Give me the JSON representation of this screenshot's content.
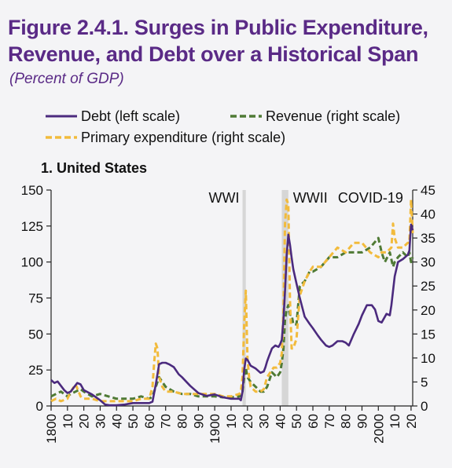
{
  "header": {
    "title": "Figure 2.4.1. Surges in Public Expenditure, Revenue, and Debt over a Historical Span",
    "subtitle": "(Percent of GDP)"
  },
  "chart_data": {
    "type": "line",
    "panel_title": "1. United States",
    "legend": [
      {
        "key": "debt",
        "label": "Debt (left scale)"
      },
      {
        "key": "revenue",
        "label": "Revenue (right scale)"
      },
      {
        "key": "expenditure",
        "label": "Primary expenditure (right scale)"
      }
    ],
    "x_range": [
      1800,
      2021
    ],
    "x_ticks": [
      {
        "value": 1800,
        "label": "1800"
      },
      {
        "value": 1810,
        "label": "10"
      },
      {
        "value": 1820,
        "label": "20"
      },
      {
        "value": 1830,
        "label": "30"
      },
      {
        "value": 1840,
        "label": "40"
      },
      {
        "value": 1850,
        "label": "50"
      },
      {
        "value": 1860,
        "label": "60"
      },
      {
        "value": 1870,
        "label": "70"
      },
      {
        "value": 1880,
        "label": "80"
      },
      {
        "value": 1890,
        "label": "90"
      },
      {
        "value": 1900,
        "label": "1900"
      },
      {
        "value": 1910,
        "label": "10"
      },
      {
        "value": 1920,
        "label": "20"
      },
      {
        "value": 1930,
        "label": "30"
      },
      {
        "value": 1940,
        "label": "40"
      },
      {
        "value": 1950,
        "label": "50"
      },
      {
        "value": 1960,
        "label": "60"
      },
      {
        "value": 1970,
        "label": "70"
      },
      {
        "value": 1980,
        "label": "80"
      },
      {
        "value": 1990,
        "label": "90"
      },
      {
        "value": 2000,
        "label": "2000"
      },
      {
        "value": 2010,
        "label": "10"
      },
      {
        "value": 2020,
        "label": "20"
      }
    ],
    "y_left": {
      "range": [
        0,
        150
      ],
      "ticks": [
        0,
        25,
        50,
        75,
        100,
        125,
        150
      ]
    },
    "y_right": {
      "range": [
        0,
        45
      ],
      "ticks": [
        0,
        5,
        10,
        15,
        20,
        25,
        30,
        35,
        40,
        45
      ]
    },
    "shaded_periods": [
      {
        "label": "WWI",
        "start": 1917,
        "end": 1919
      },
      {
        "label": "WWII",
        "start": 1941,
        "end": 1945
      }
    ],
    "annotations": [
      {
        "label": "COVID-19",
        "x": 2020
      }
    ],
    "colors": {
      "debt": "#4b2a7e",
      "revenue": "#4f7a35",
      "expenditure": "#f2bb3c",
      "shade": "#d6d6d6"
    },
    "series": [
      {
        "key": "debt",
        "axis": "left",
        "x": [
          1800,
          1802,
          1804,
          1806,
          1808,
          1810,
          1812,
          1814,
          1816,
          1818,
          1820,
          1825,
          1830,
          1833,
          1836,
          1840,
          1845,
          1850,
          1855,
          1860,
          1862,
          1864,
          1866,
          1868,
          1870,
          1872,
          1875,
          1878,
          1880,
          1885,
          1890,
          1895,
          1900,
          1905,
          1910,
          1915,
          1916,
          1917,
          1918,
          1919,
          1920,
          1922,
          1925,
          1928,
          1930,
          1931,
          1932,
          1933,
          1935,
          1937,
          1939,
          1940,
          1941,
          1942,
          1943,
          1944,
          1945,
          1946,
          1947,
          1948,
          1950,
          1952,
          1955,
          1958,
          1960,
          1963,
          1965,
          1968,
          1970,
          1972,
          1975,
          1978,
          1980,
          1982,
          1985,
          1988,
          1990,
          1993,
          1996,
          1998,
          2000,
          2002,
          2005,
          2007,
          2008,
          2009,
          2010,
          2012,
          2015,
          2017,
          2018,
          2019,
          2020,
          2021
        ],
        "y": [
          18,
          16,
          17,
          14,
          11,
          9,
          10,
          13,
          16,
          15,
          11,
          8,
          4,
          1,
          0.5,
          0.5,
          1,
          2,
          2,
          2,
          3,
          15,
          29,
          30,
          30,
          29,
          27,
          22,
          20,
          14,
          9,
          7,
          8,
          6,
          5,
          5,
          4,
          10,
          25,
          33,
          32,
          28,
          26,
          23,
          24,
          27,
          31,
          34,
          40,
          42,
          41,
          43,
          46,
          60,
          80,
          105,
          119,
          112,
          103,
          95,
          85,
          75,
          62,
          57,
          54,
          49,
          46,
          42,
          41,
          42,
          45,
          45,
          44,
          42,
          50,
          57,
          63,
          70,
          70,
          67,
          59,
          58,
          64,
          63,
          70,
          80,
          90,
          100,
          102,
          104,
          105,
          108,
          126,
          122
        ]
      },
      {
        "key": "revenue",
        "axis": "right",
        "x": [
          1800,
          1803,
          1806,
          1810,
          1812,
          1815,
          1818,
          1820,
          1825,
          1830,
          1835,
          1840,
          1845,
          1850,
          1855,
          1860,
          1862,
          1864,
          1866,
          1868,
          1870,
          1875,
          1880,
          1885,
          1890,
          1895,
          1900,
          1905,
          1910,
          1915,
          1916,
          1917,
          1918,
          1919,
          1920,
          1922,
          1925,
          1928,
          1930,
          1932,
          1935,
          1938,
          1940,
          1941,
          1942,
          1943,
          1944,
          1945,
          1946,
          1947,
          1948,
          1950,
          1952,
          1955,
          1958,
          1960,
          1965,
          1970,
          1975,
          1980,
          1985,
          1990,
          1995,
          2000,
          2002,
          2004,
          2007,
          2009,
          2010,
          2012,
          2015,
          2018,
          2019,
          2020,
          2021
        ],
        "y": [
          2,
          2.5,
          3,
          2,
          2.5,
          3,
          3.5,
          3,
          2,
          2.5,
          2,
          1.5,
          1.5,
          1.5,
          2,
          1.5,
          2,
          4,
          6,
          5,
          4,
          3,
          2.5,
          2.5,
          2,
          2,
          2,
          1.8,
          1.8,
          2,
          2,
          3,
          6,
          8,
          6,
          5,
          4,
          3,
          3,
          4,
          7,
          6,
          7,
          9,
          12,
          18,
          20,
          21,
          19,
          19,
          17,
          17,
          25,
          26,
          28,
          28,
          29,
          31,
          31,
          32,
          32,
          32,
          33,
          35,
          32,
          30,
          32,
          29,
          30,
          31,
          32,
          31,
          32,
          30,
          31
        ]
      },
      {
        "key": "expenditure",
        "axis": "right",
        "x": [
          1800,
          1803,
          1806,
          1810,
          1812,
          1815,
          1818,
          1820,
          1825,
          1830,
          1835,
          1840,
          1845,
          1850,
          1855,
          1860,
          1862,
          1863,
          1864,
          1865,
          1866,
          1868,
          1870,
          1875,
          1880,
          1885,
          1890,
          1895,
          1900,
          1905,
          1910,
          1915,
          1916,
          1917,
          1918,
          1919,
          1920,
          1921,
          1922,
          1925,
          1928,
          1930,
          1932,
          1934,
          1936,
          1938,
          1940,
          1941,
          1942,
          1943,
          1944,
          1945,
          1946,
          1947,
          1948,
          1950,
          1952,
          1955,
          1958,
          1960,
          1965,
          1970,
          1975,
          1980,
          1985,
          1990,
          1995,
          2000,
          2002,
          2005,
          2008,
          2009,
          2010,
          2012,
          2015,
          2018,
          2019,
          2020,
          2021
        ],
        "y": [
          1,
          1.5,
          1,
          1.5,
          3,
          4.5,
          2,
          1.5,
          1.5,
          1,
          1,
          1,
          1,
          1,
          1.5,
          1.5,
          4,
          9,
          13,
          12,
          6,
          4,
          3,
          3,
          2.5,
          2.5,
          2.5,
          2.5,
          2.5,
          2,
          2,
          2.5,
          3,
          6,
          17,
          24,
          10,
          6,
          4,
          3,
          3,
          3.5,
          6,
          7,
          8,
          8,
          9,
          11,
          20,
          38,
          43,
          42,
          22,
          12,
          12,
          14,
          23,
          26,
          28,
          29,
          29,
          31,
          33,
          32,
          34,
          34,
          32,
          31,
          32,
          32,
          33,
          38,
          35,
          33,
          33,
          34,
          34,
          43,
          36
        ]
      }
    ]
  }
}
